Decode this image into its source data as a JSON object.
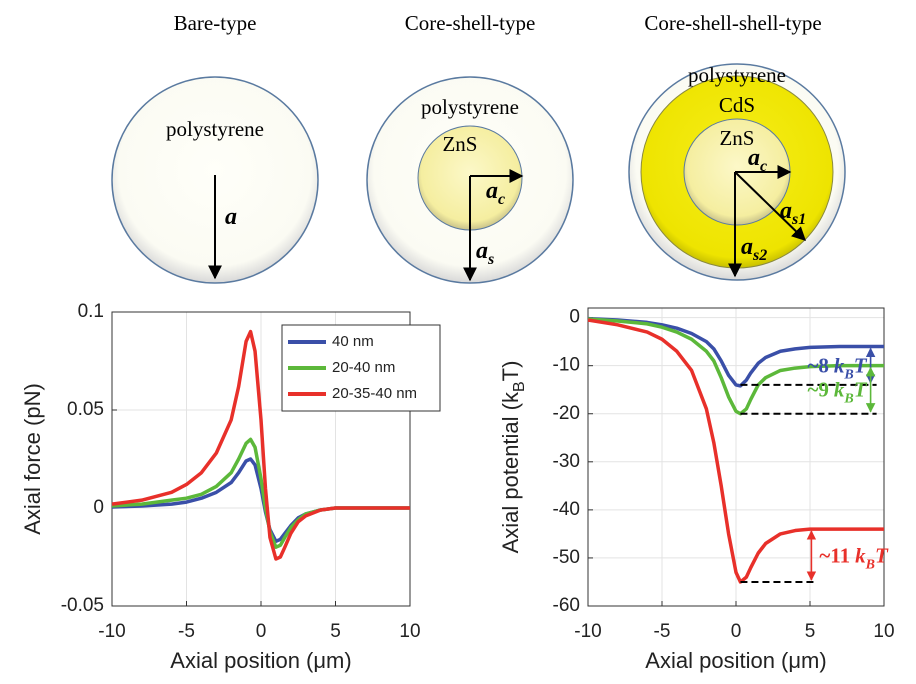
{
  "particles": [
    {
      "title": "Bare-type",
      "layers": [
        "polystyrene"
      ],
      "radii": [
        {
          "symbol": "a"
        }
      ]
    },
    {
      "title": "Core-shell-type",
      "layers": [
        "polystyrene",
        "ZnS"
      ],
      "radii": [
        {
          "symbol": "a",
          "sub": "c"
        },
        {
          "symbol": "a",
          "sub": "s"
        }
      ]
    },
    {
      "title": "Core-shell-shell-type",
      "layers": [
        "polystyrene",
        "CdS",
        "ZnS"
      ],
      "radii": [
        {
          "symbol": "a",
          "sub": "c"
        },
        {
          "symbol": "a",
          "sub": "s1"
        },
        {
          "symbol": "a",
          "sub": "s2"
        }
      ]
    }
  ],
  "chart_data": [
    {
      "type": "line",
      "xlabel": "Axial position (μm)",
      "ylabel": "Axial force (pN)",
      "xlim": [
        -10,
        10
      ],
      "xticks": [
        -10,
        -5,
        0,
        5,
        10
      ],
      "ylim": [
        -0.05,
        0.1
      ],
      "yticks": [
        -0.05,
        0,
        0.05,
        0.1
      ],
      "grid": true,
      "legend": "northeast",
      "x": [
        -10,
        -8,
        -6,
        -5,
        -4,
        -3,
        -2,
        -1.5,
        -1,
        -0.7,
        -0.4,
        0,
        0.3,
        0.6,
        1,
        1.3,
        1.6,
        2,
        2.5,
        3,
        4,
        5,
        6,
        8,
        10
      ],
      "series": [
        {
          "name": "40 nm",
          "color": "#3a4fa8",
          "values": [
            0.0005,
            0.001,
            0.002,
            0.003,
            0.005,
            0.008,
            0.013,
            0.018,
            0.024,
            0.025,
            0.022,
            0.01,
            -0.002,
            -0.011,
            -0.017,
            -0.016,
            -0.013,
            -0.009,
            -0.005,
            -0.003,
            -0.001,
            0,
            0,
            0,
            0
          ]
        },
        {
          "name": "20-40 nm",
          "color": "#5cb83a",
          "values": [
            0.001,
            0.002,
            0.004,
            0.005,
            0.007,
            0.011,
            0.018,
            0.025,
            0.033,
            0.035,
            0.031,
            0.015,
            0,
            -0.012,
            -0.02,
            -0.019,
            -0.015,
            -0.01,
            -0.006,
            -0.003,
            -0.001,
            0,
            0,
            0,
            0
          ]
        },
        {
          "name": "20-35-40 nm",
          "color": "#e8302a",
          "values": [
            0.002,
            0.004,
            0.008,
            0.012,
            0.018,
            0.028,
            0.045,
            0.062,
            0.085,
            0.09,
            0.08,
            0.045,
            0.01,
            -0.015,
            -0.026,
            -0.025,
            -0.02,
            -0.013,
            -0.007,
            -0.004,
            -0.001,
            0,
            0,
            0,
            0
          ]
        }
      ]
    },
    {
      "type": "line",
      "xlabel": "Axial position (μm)",
      "ylabel": [
        "Axial potential (k",
        "B",
        "T)"
      ],
      "xlim": [
        -10,
        10
      ],
      "xticks": [
        -10,
        -5,
        0,
        5,
        10
      ],
      "ylim": [
        -60,
        2
      ],
      "yticks": [
        -60,
        -50,
        -40,
        -30,
        -20,
        -10,
        0
      ],
      "grid": true,
      "x": [
        -10,
        -8,
        -6,
        -5,
        -4,
        -3,
        -2,
        -1.5,
        -1,
        -0.5,
        0,
        0.3,
        0.7,
        1,
        1.5,
        2,
        3,
        4,
        5,
        7,
        10
      ],
      "series": [
        {
          "color": "#3a4fa8",
          "values": [
            -0.2,
            -0.5,
            -1,
            -1.5,
            -2.2,
            -3.3,
            -5,
            -6.5,
            -9,
            -12,
            -14,
            -14.2,
            -13,
            -11.5,
            -9.5,
            -8.3,
            -7,
            -6.5,
            -6.2,
            -6,
            -6
          ]
        },
        {
          "color": "#5cb83a",
          "values": [
            -0.3,
            -0.7,
            -1.3,
            -2,
            -3,
            -4.5,
            -7,
            -9,
            -12.5,
            -16.5,
            -19.5,
            -20,
            -19,
            -17,
            -14,
            -12.5,
            -11,
            -10.5,
            -10.2,
            -10,
            -10
          ]
        },
        {
          "color": "#e8302a",
          "values": [
            -0.5,
            -1.5,
            -3,
            -4.5,
            -7,
            -11,
            -19,
            -26,
            -35,
            -45,
            -53,
            -55,
            -54,
            -52,
            -49,
            -47,
            -45,
            -44.3,
            -44,
            -44,
            -44
          ]
        }
      ],
      "annotations": [
        {
          "prefix": "~8",
          "symbol": "k",
          "sub": "B",
          "tail": "T",
          "color": "#3a4fa8",
          "x": [
            0.3,
            9.5
          ],
          "y": [
            -14,
            -6
          ]
        },
        {
          "prefix": "~9",
          "symbol": "k",
          "sub": "B",
          "tail": "T",
          "color": "#5cb83a",
          "x": [
            0.3,
            9.5
          ],
          "y": [
            -20,
            -10
          ]
        },
        {
          "prefix": "~11",
          "symbol": "k",
          "sub": "B",
          "tail": "T",
          "color": "#e8302a",
          "x": [
            0.3,
            5.5
          ],
          "y": [
            -55,
            -44
          ]
        }
      ]
    }
  ]
}
